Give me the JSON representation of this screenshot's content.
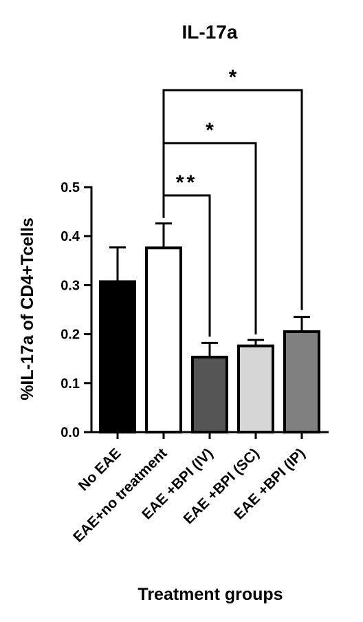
{
  "chart_data": {
    "type": "bar",
    "title": "IL-17a",
    "xlabel": "Treatment groups",
    "ylabel": "%IL-17a of CD4+Tcells",
    "ylim": [
      0,
      0.5
    ],
    "yticks": [
      "0.0",
      "0.1",
      "0.2",
      "0.3",
      "0.4",
      "0.5"
    ],
    "grid": false,
    "categories": [
      "No EAE",
      "EAE+no treatment",
      "EAE +BPI (IV)",
      "EAE +BPI (SC)",
      "EAE +BPI (IP)"
    ],
    "values": [
      0.307,
      0.376,
      0.153,
      0.176,
      0.205
    ],
    "error_upper": [
      0.377,
      0.426,
      0.182,
      0.188,
      0.235
    ],
    "bar_colors": [
      "#000000",
      "#ffffff",
      "#555555",
      "#d6d6d6",
      "#808080"
    ],
    "significance": [
      {
        "from": "EAE+no treatment",
        "to": "EAE +BPI (IV)",
        "label": "**"
      },
      {
        "from": "EAE+no treatment",
        "to": "EAE +BPI (SC)",
        "label": "*"
      },
      {
        "from": "EAE+no treatment",
        "to": "EAE +BPI (IP)",
        "label": "*"
      }
    ]
  }
}
